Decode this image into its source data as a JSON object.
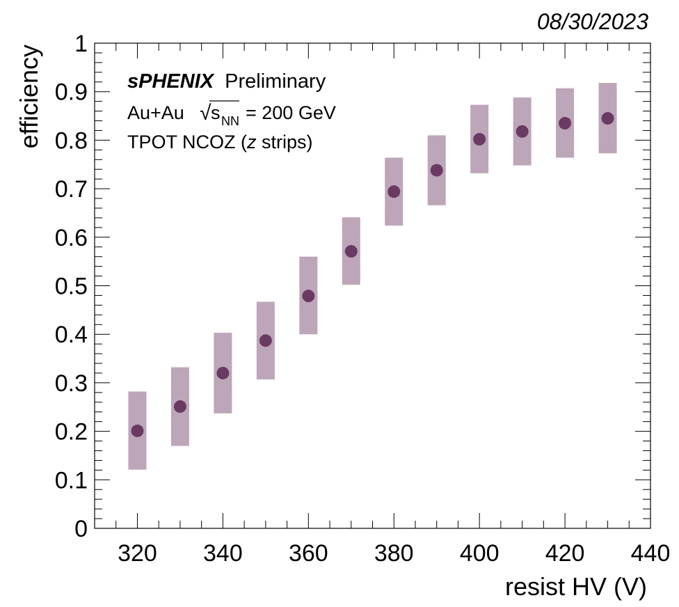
{
  "date": "08/30/2023",
  "annotation": {
    "experiment": "sPHENIX",
    "status": "Preliminary",
    "collision_prefix": "Au+Au",
    "sqrt_symbol": "√",
    "energy_var": "s",
    "energy_sub": "NN",
    "energy_suffix": "= 200 GeV",
    "detector_prefix": "TPOT NCOZ (",
    "detector_var": "z",
    "detector_suffix": " strips)"
  },
  "colors": {
    "marker": "#6b3a63",
    "band": "#6b3a63"
  },
  "chart_data": {
    "type": "scatter",
    "xlabel": "resist HV (V)",
    "ylabel": "efficiency",
    "xlim": [
      310,
      440
    ],
    "ylim": [
      0,
      1
    ],
    "xticks": [
      320,
      340,
      360,
      380,
      400,
      420,
      440
    ],
    "yticks": [
      0,
      0.1,
      0.2,
      0.3,
      0.4,
      0.5,
      0.6,
      0.7,
      0.8,
      0.9,
      1
    ],
    "ytick_labels": [
      "0",
      "0.1",
      "0.2",
      "0.3",
      "0.4",
      "0.5",
      "0.6",
      "0.7",
      "0.8",
      "0.9",
      "1"
    ],
    "grid": false,
    "error_type": "systematic band (hatched)",
    "points": [
      {
        "x": 320,
        "y": 0.201,
        "lo": 0.121,
        "hi": 0.282
      },
      {
        "x": 330,
        "y": 0.251,
        "lo": 0.17,
        "hi": 0.332
      },
      {
        "x": 340,
        "y": 0.32,
        "lo": 0.237,
        "hi": 0.403
      },
      {
        "x": 350,
        "y": 0.387,
        "lo": 0.307,
        "hi": 0.467
      },
      {
        "x": 360,
        "y": 0.479,
        "lo": 0.4,
        "hi": 0.56
      },
      {
        "x": 370,
        "y": 0.571,
        "lo": 0.502,
        "hi": 0.641
      },
      {
        "x": 380,
        "y": 0.694,
        "lo": 0.624,
        "hi": 0.764
      },
      {
        "x": 390,
        "y": 0.738,
        "lo": 0.666,
        "hi": 0.81
      },
      {
        "x": 400,
        "y": 0.802,
        "lo": 0.732,
        "hi": 0.873
      },
      {
        "x": 410,
        "y": 0.818,
        "lo": 0.748,
        "hi": 0.888
      },
      {
        "x": 420,
        "y": 0.835,
        "lo": 0.764,
        "hi": 0.907
      },
      {
        "x": 430,
        "y": 0.845,
        "lo": 0.773,
        "hi": 0.918
      }
    ]
  }
}
